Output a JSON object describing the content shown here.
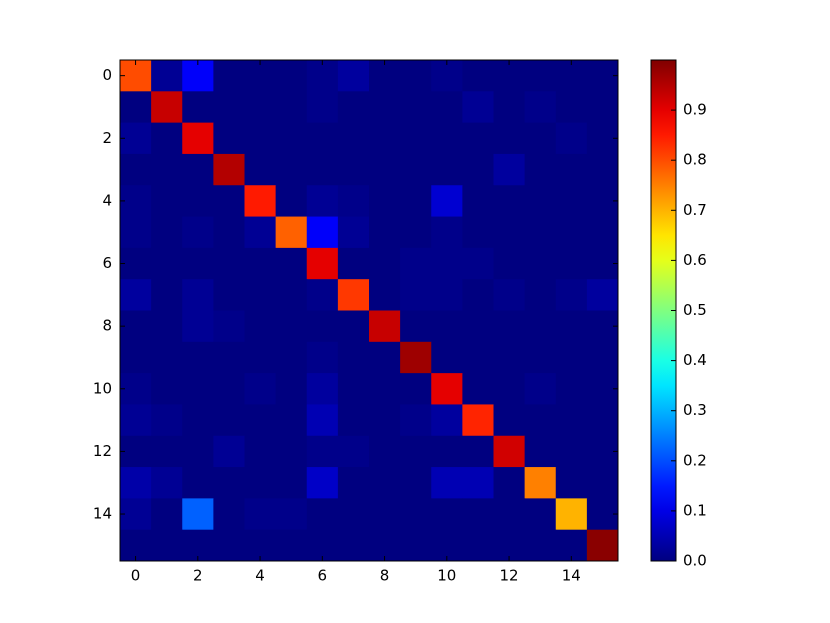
{
  "chart_data": {
    "type": "heatmap",
    "colormap": "jet",
    "z": [
      [
        0.8,
        0.02,
        0.12,
        0,
        0,
        0,
        0.01,
        0.03,
        0,
        0,
        0.01,
        0,
        0,
        0,
        0,
        0
      ],
      [
        0,
        0.93,
        0,
        0,
        0,
        0,
        0.01,
        0,
        0,
        0,
        0,
        0.02,
        0,
        0.01,
        0,
        0
      ],
      [
        0.02,
        0,
        0.9,
        0,
        0,
        0,
        0,
        0,
        0,
        0,
        0,
        0,
        0,
        0,
        0.01,
        0
      ],
      [
        0,
        0,
        0,
        0.95,
        0,
        0,
        0,
        0,
        0,
        0,
        0,
        0,
        0.03,
        0,
        0,
        0
      ],
      [
        0.01,
        0,
        0,
        0,
        0.85,
        0,
        0.02,
        0.01,
        0,
        0,
        0.08,
        0,
        0,
        0,
        0,
        0
      ],
      [
        0.01,
        0,
        0.01,
        0,
        0.02,
        0.78,
        0.12,
        0.02,
        0,
        0,
        0.01,
        0,
        0,
        0,
        0,
        0
      ],
      [
        0,
        0,
        0,
        0,
        0,
        0,
        0.9,
        0,
        0,
        0.01,
        0.01,
        0.01,
        0,
        0,
        0,
        0
      ],
      [
        0.03,
        0,
        0.02,
        0,
        0,
        0,
        0.01,
        0.82,
        0,
        0.01,
        0.01,
        0,
        0.01,
        0,
        0.01,
        0.03
      ],
      [
        0,
        0,
        0.02,
        0.01,
        0,
        0,
        0,
        0,
        0.93,
        0,
        0,
        0,
        0,
        0,
        0,
        0
      ],
      [
        0,
        0,
        0,
        0,
        0,
        0,
        0.01,
        0,
        0,
        0.97,
        0,
        0,
        0,
        0,
        0,
        0
      ],
      [
        0.01,
        0,
        0,
        0,
        0.01,
        0,
        0.03,
        0,
        0,
        0,
        0.9,
        0,
        0,
        0.01,
        0,
        0
      ],
      [
        0.02,
        0.01,
        0,
        0,
        0,
        0,
        0.05,
        0,
        0,
        0.01,
        0.03,
        0.84,
        0,
        0,
        0,
        0
      ],
      [
        0,
        0,
        0,
        0.02,
        0,
        0,
        0.01,
        0.01,
        0,
        0,
        0,
        0,
        0.92,
        0,
        0,
        0
      ],
      [
        0.04,
        0.02,
        0,
        0,
        0,
        0,
        0.07,
        0,
        0,
        0,
        0.05,
        0.05,
        0,
        0.75,
        0,
        0
      ],
      [
        0.02,
        0,
        0.22,
        0,
        0.01,
        0.01,
        0,
        0,
        0,
        0,
        0,
        0,
        0,
        0,
        0.7,
        0
      ],
      [
        0,
        0,
        0,
        0,
        0,
        0,
        0,
        0,
        0,
        0,
        0,
        0,
        0,
        0,
        0,
        0.99
      ]
    ],
    "xlim": [
      -0.5,
      15.5
    ],
    "ylim": [
      15.5,
      -0.5
    ],
    "xticks": [
      0,
      2,
      4,
      6,
      8,
      10,
      12,
      14
    ],
    "yticks": [
      0,
      2,
      4,
      6,
      8,
      10,
      12,
      14
    ],
    "clim": [
      0,
      1
    ],
    "cticks": [
      {
        "value": 0,
        "label": "0.0"
      },
      0.1,
      0.2,
      0.3,
      0.4,
      0.5,
      0.6,
      0.7,
      0.8,
      0.9
    ]
  }
}
